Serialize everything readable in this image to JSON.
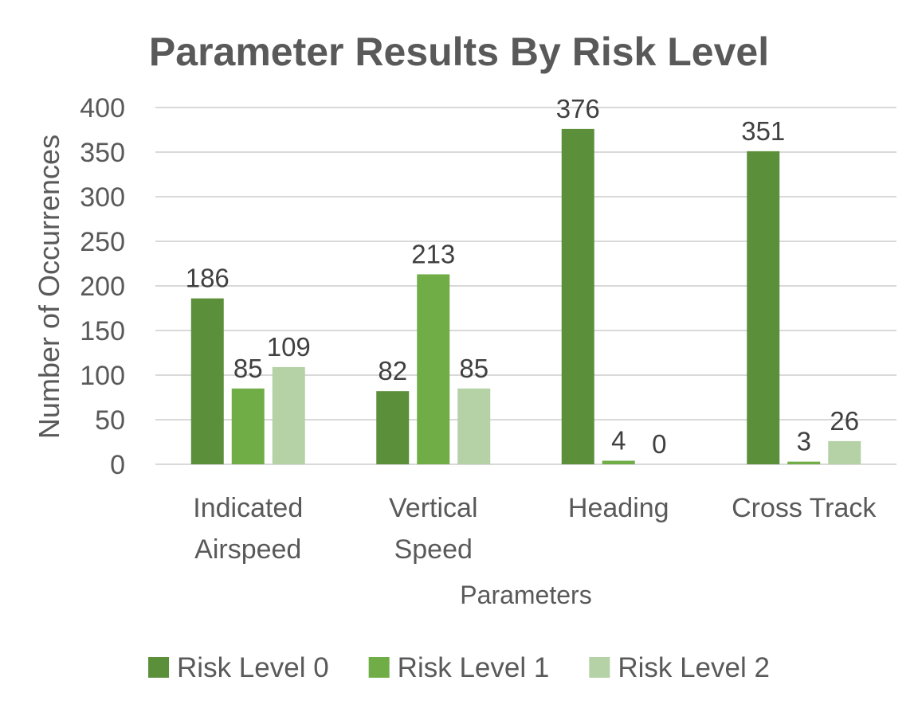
{
  "chart_data": {
    "type": "bar",
    "title": "Parameter Results By Risk Level",
    "xlabel": "Parameters",
    "ylabel": "Number of Occurrences",
    "categories": [
      [
        "Indicated",
        "Airspeed"
      ],
      [
        "Vertical",
        "Speed"
      ],
      [
        "Heading"
      ],
      [
        "Cross Track"
      ]
    ],
    "series": [
      {
        "name": "Risk Level 0",
        "color": "#5b8f3a",
        "values": [
          186,
          82,
          376,
          351
        ]
      },
      {
        "name": "Risk Level 1",
        "color": "#70ad47",
        "values": [
          85,
          213,
          4,
          3
        ]
      },
      {
        "name": "Risk Level 2",
        "color": "#b5d1a6",
        "values": [
          109,
          85,
          0,
          26
        ]
      }
    ],
    "ylim": [
      0,
      400
    ],
    "yticks": [
      0,
      50,
      100,
      150,
      200,
      250,
      300,
      350,
      400
    ],
    "grid": true,
    "legend_position": "bottom",
    "gridline_color": "#d9d9d9"
  }
}
